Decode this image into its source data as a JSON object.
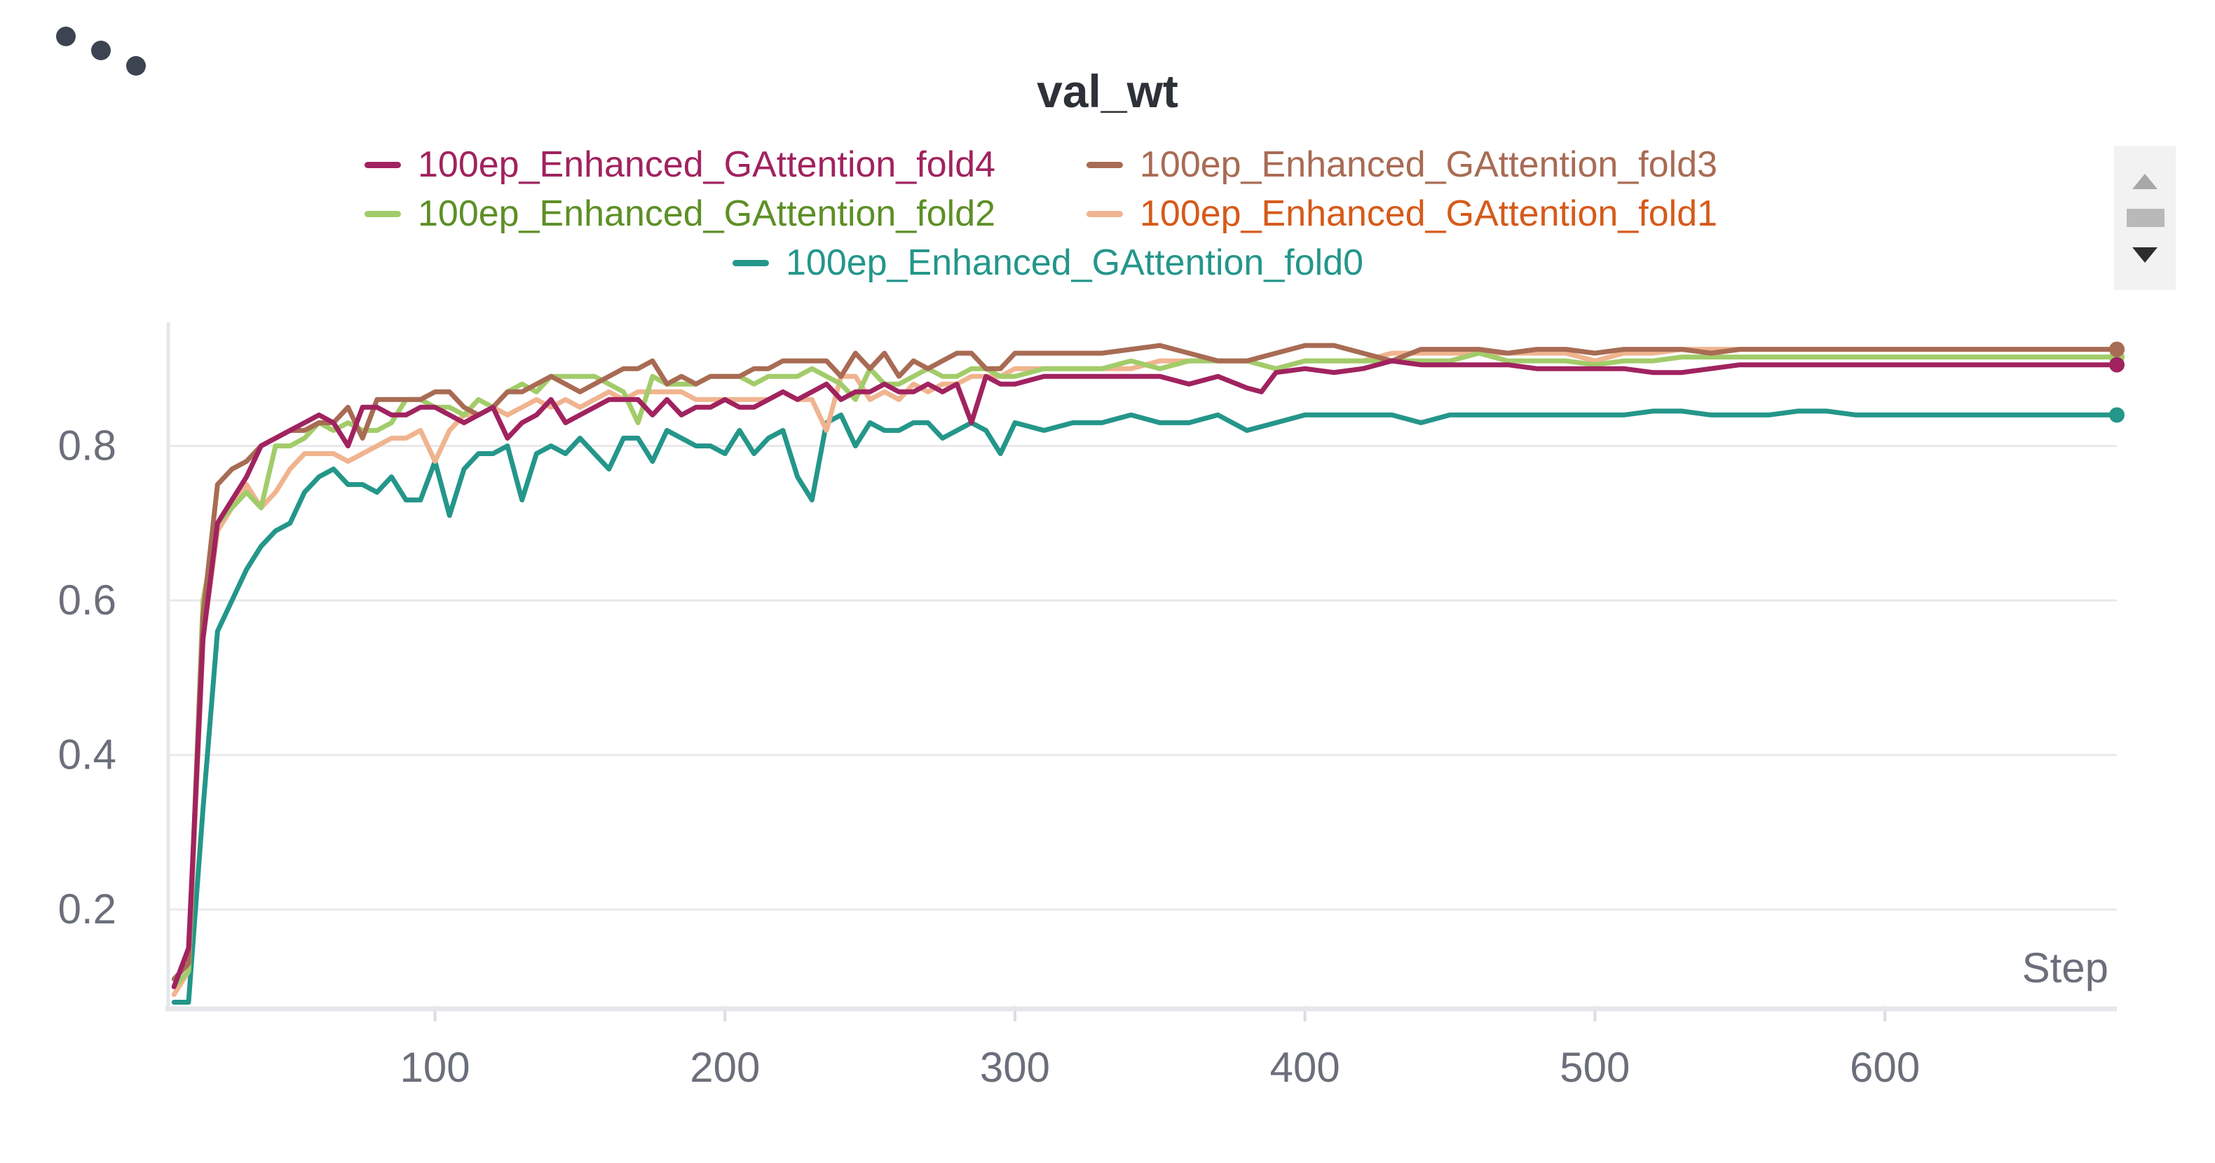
{
  "menu": {
    "icon": "more-dots-icon"
  },
  "chart_data": {
    "type": "line",
    "title": "val_wt",
    "xlabel": "Step",
    "ylabel": "",
    "xlim": [
      8,
      680
    ],
    "ylim": [
      0.075,
      0.96
    ],
    "x_ticks": [
      100,
      200,
      300,
      400,
      500,
      600
    ],
    "y_ticks": [
      0.2,
      0.4,
      0.6,
      0.8
    ],
    "grid": true,
    "legend_position": "top-center",
    "series": [
      {
        "name": "100ep_Enhanced_GAttention_fold4",
        "line_color": "#a0235f",
        "label_color": "#a0235f",
        "x": [
          10,
          15,
          20,
          25,
          30,
          35,
          40,
          45,
          50,
          55,
          60,
          65,
          70,
          75,
          80,
          85,
          90,
          95,
          100,
          105,
          110,
          115,
          120,
          125,
          130,
          135,
          140,
          145,
          150,
          155,
          160,
          165,
          170,
          175,
          180,
          185,
          190,
          195,
          200,
          205,
          210,
          215,
          220,
          225,
          230,
          235,
          240,
          245,
          250,
          255,
          260,
          265,
          270,
          275,
          280,
          285,
          290,
          295,
          300,
          310,
          320,
          330,
          340,
          350,
          360,
          370,
          380,
          385,
          390,
          400,
          410,
          420,
          430,
          440,
          450,
          460,
          470,
          480,
          490,
          500,
          510,
          520,
          530,
          540,
          550,
          560,
          570,
          580,
          590,
          600,
          620,
          640,
          660,
          680
        ],
        "values": [
          0.1,
          0.15,
          0.55,
          0.7,
          0.73,
          0.76,
          0.8,
          0.81,
          0.82,
          0.83,
          0.84,
          0.83,
          0.8,
          0.85,
          0.85,
          0.84,
          0.84,
          0.85,
          0.85,
          0.84,
          0.83,
          0.84,
          0.85,
          0.81,
          0.83,
          0.84,
          0.86,
          0.83,
          0.84,
          0.85,
          0.86,
          0.86,
          0.86,
          0.84,
          0.86,
          0.84,
          0.85,
          0.85,
          0.86,
          0.85,
          0.85,
          0.86,
          0.87,
          0.86,
          0.87,
          0.88,
          0.86,
          0.87,
          0.87,
          0.88,
          0.87,
          0.87,
          0.88,
          0.87,
          0.88,
          0.83,
          0.89,
          0.88,
          0.88,
          0.89,
          0.89,
          0.89,
          0.89,
          0.89,
          0.88,
          0.89,
          0.875,
          0.87,
          0.895,
          0.9,
          0.895,
          0.9,
          0.91,
          0.905,
          0.905,
          0.905,
          0.905,
          0.9,
          0.9,
          0.9,
          0.9,
          0.895,
          0.895,
          0.9,
          0.905,
          0.905,
          0.905,
          0.905,
          0.905,
          0.905,
          0.905,
          0.905,
          0.905,
          0.905
        ]
      },
      {
        "name": "100ep_Enhanced_GAttention_fold3",
        "line_color": "#a86b54",
        "label_color": "#a86b54",
        "x": [
          10,
          15,
          20,
          25,
          30,
          35,
          40,
          45,
          50,
          55,
          60,
          65,
          70,
          75,
          80,
          85,
          90,
          95,
          100,
          105,
          110,
          115,
          120,
          125,
          130,
          135,
          140,
          145,
          150,
          155,
          160,
          165,
          170,
          175,
          180,
          185,
          190,
          195,
          200,
          205,
          210,
          215,
          220,
          225,
          230,
          235,
          240,
          245,
          250,
          255,
          260,
          265,
          270,
          275,
          280,
          285,
          290,
          295,
          300,
          310,
          320,
          330,
          340,
          350,
          360,
          370,
          380,
          390,
          400,
          410,
          420,
          430,
          440,
          450,
          460,
          470,
          480,
          490,
          500,
          510,
          520,
          530,
          540,
          550,
          560,
          570,
          580,
          590,
          600,
          620,
          640,
          660,
          680
        ],
        "values": [
          0.11,
          0.13,
          0.58,
          0.75,
          0.77,
          0.78,
          0.8,
          0.81,
          0.82,
          0.82,
          0.83,
          0.83,
          0.85,
          0.81,
          0.86,
          0.86,
          0.86,
          0.86,
          0.87,
          0.87,
          0.85,
          0.84,
          0.85,
          0.87,
          0.87,
          0.88,
          0.89,
          0.88,
          0.87,
          0.88,
          0.89,
          0.9,
          0.9,
          0.91,
          0.88,
          0.89,
          0.88,
          0.89,
          0.89,
          0.89,
          0.9,
          0.9,
          0.91,
          0.91,
          0.91,
          0.91,
          0.89,
          0.92,
          0.9,
          0.92,
          0.89,
          0.91,
          0.9,
          0.91,
          0.92,
          0.92,
          0.9,
          0.9,
          0.92,
          0.92,
          0.92,
          0.92,
          0.925,
          0.93,
          0.92,
          0.91,
          0.91,
          0.92,
          0.93,
          0.93,
          0.92,
          0.91,
          0.925,
          0.925,
          0.925,
          0.92,
          0.925,
          0.925,
          0.92,
          0.925,
          0.925,
          0.925,
          0.92,
          0.925,
          0.925,
          0.925,
          0.925,
          0.925,
          0.925,
          0.925,
          0.925,
          0.925,
          0.925
        ]
      },
      {
        "name": "100ep_Enhanced_GAttention_fold2",
        "line_color": "#a2cc6a",
        "label_color": "#5d8f26",
        "x": [
          10,
          15,
          20,
          25,
          30,
          35,
          40,
          45,
          50,
          55,
          60,
          65,
          70,
          75,
          80,
          85,
          90,
          95,
          100,
          105,
          110,
          115,
          120,
          125,
          130,
          135,
          140,
          145,
          150,
          155,
          160,
          165,
          170,
          175,
          180,
          185,
          190,
          195,
          200,
          205,
          210,
          215,
          220,
          225,
          230,
          235,
          240,
          245,
          250,
          255,
          260,
          265,
          270,
          275,
          280,
          285,
          290,
          295,
          300,
          310,
          320,
          330,
          340,
          350,
          360,
          370,
          380,
          390,
          400,
          410,
          420,
          430,
          440,
          450,
          460,
          470,
          480,
          490,
          500,
          510,
          520,
          530,
          540,
          550,
          560,
          570,
          580,
          590,
          600,
          620,
          640,
          660,
          680
        ],
        "values": [
          0.1,
          0.12,
          0.6,
          0.7,
          0.72,
          0.74,
          0.72,
          0.8,
          0.8,
          0.81,
          0.83,
          0.82,
          0.83,
          0.82,
          0.82,
          0.83,
          0.86,
          0.86,
          0.85,
          0.85,
          0.84,
          0.86,
          0.85,
          0.87,
          0.88,
          0.87,
          0.89,
          0.89,
          0.89,
          0.89,
          0.88,
          0.87,
          0.83,
          0.89,
          0.88,
          0.88,
          0.88,
          0.89,
          0.89,
          0.89,
          0.88,
          0.89,
          0.89,
          0.89,
          0.9,
          0.89,
          0.88,
          0.86,
          0.9,
          0.88,
          0.88,
          0.89,
          0.9,
          0.89,
          0.89,
          0.9,
          0.9,
          0.89,
          0.89,
          0.9,
          0.9,
          0.9,
          0.91,
          0.9,
          0.91,
          0.91,
          0.91,
          0.9,
          0.91,
          0.91,
          0.91,
          0.91,
          0.91,
          0.91,
          0.92,
          0.91,
          0.91,
          0.91,
          0.905,
          0.91,
          0.91,
          0.915,
          0.915,
          0.915,
          0.915,
          0.915,
          0.915,
          0.915,
          0.915,
          0.915,
          0.915,
          0.915,
          0.915
        ]
      },
      {
        "name": "100ep_Enhanced_GAttention_fold1",
        "line_color": "#f0b48f",
        "label_color": "#d65a1a",
        "x": [
          10,
          15,
          20,
          25,
          30,
          35,
          40,
          45,
          50,
          55,
          60,
          65,
          70,
          75,
          80,
          85,
          90,
          95,
          100,
          105,
          110,
          115,
          120,
          125,
          130,
          135,
          140,
          145,
          150,
          155,
          160,
          165,
          170,
          175,
          180,
          185,
          190,
          195,
          200,
          205,
          210,
          215,
          220,
          225,
          230,
          235,
          240,
          245,
          250,
          255,
          260,
          265,
          270,
          275,
          280,
          285,
          290,
          295,
          300,
          310,
          320,
          330,
          340,
          350,
          360,
          370,
          380,
          390,
          400,
          410,
          420,
          430,
          440,
          450,
          460,
          470,
          480,
          490,
          500,
          510,
          520,
          530,
          540,
          550,
          560,
          570,
          580,
          590,
          600,
          620,
          640,
          660,
          680
        ],
        "values": [
          0.09,
          0.12,
          0.55,
          0.69,
          0.72,
          0.75,
          0.72,
          0.74,
          0.77,
          0.79,
          0.79,
          0.79,
          0.78,
          0.79,
          0.8,
          0.81,
          0.81,
          0.82,
          0.78,
          0.82,
          0.84,
          0.84,
          0.85,
          0.84,
          0.85,
          0.86,
          0.85,
          0.86,
          0.85,
          0.86,
          0.87,
          0.86,
          0.87,
          0.87,
          0.87,
          0.87,
          0.86,
          0.86,
          0.86,
          0.86,
          0.86,
          0.86,
          0.87,
          0.86,
          0.86,
          0.82,
          0.89,
          0.89,
          0.86,
          0.87,
          0.86,
          0.88,
          0.87,
          0.88,
          0.88,
          0.89,
          0.89,
          0.89,
          0.9,
          0.9,
          0.9,
          0.9,
          0.9,
          0.91,
          0.91,
          0.91,
          0.91,
          0.9,
          0.91,
          0.91,
          0.91,
          0.92,
          0.92,
          0.92,
          0.92,
          0.92,
          0.92,
          0.92,
          0.91,
          0.92,
          0.92,
          0.925,
          0.925,
          0.925,
          0.925,
          0.925,
          0.925,
          0.925,
          0.925,
          0.925,
          0.925,
          0.925,
          0.925
        ]
      },
      {
        "name": "100ep_Enhanced_GAttention_fold0",
        "line_color": "#24968a",
        "label_color": "#24968a",
        "x": [
          10,
          15,
          20,
          25,
          30,
          35,
          40,
          45,
          50,
          55,
          60,
          65,
          70,
          75,
          80,
          85,
          90,
          95,
          100,
          105,
          110,
          115,
          120,
          125,
          130,
          135,
          140,
          145,
          150,
          155,
          160,
          165,
          170,
          175,
          180,
          185,
          190,
          195,
          200,
          205,
          210,
          215,
          220,
          225,
          230,
          235,
          240,
          245,
          250,
          255,
          260,
          265,
          270,
          275,
          280,
          285,
          290,
          295,
          300,
          310,
          320,
          330,
          340,
          350,
          360,
          370,
          380,
          390,
          400,
          410,
          420,
          430,
          440,
          450,
          460,
          470,
          480,
          490,
          500,
          510,
          520,
          530,
          540,
          550,
          560,
          570,
          580,
          590,
          600,
          620,
          640,
          660,
          680
        ],
        "values": [
          0.08,
          0.08,
          0.33,
          0.56,
          0.6,
          0.64,
          0.67,
          0.69,
          0.7,
          0.74,
          0.76,
          0.77,
          0.75,
          0.75,
          0.74,
          0.76,
          0.73,
          0.73,
          0.78,
          0.71,
          0.77,
          0.79,
          0.79,
          0.8,
          0.73,
          0.79,
          0.8,
          0.79,
          0.81,
          0.79,
          0.77,
          0.81,
          0.81,
          0.78,
          0.82,
          0.81,
          0.8,
          0.8,
          0.79,
          0.82,
          0.79,
          0.81,
          0.82,
          0.76,
          0.73,
          0.83,
          0.84,
          0.8,
          0.83,
          0.82,
          0.82,
          0.83,
          0.83,
          0.81,
          0.82,
          0.83,
          0.82,
          0.79,
          0.83,
          0.82,
          0.83,
          0.83,
          0.84,
          0.83,
          0.83,
          0.84,
          0.82,
          0.83,
          0.84,
          0.84,
          0.84,
          0.84,
          0.83,
          0.84,
          0.84,
          0.84,
          0.84,
          0.84,
          0.84,
          0.84,
          0.845,
          0.845,
          0.84,
          0.84,
          0.84,
          0.845,
          0.845,
          0.84,
          0.84,
          0.84,
          0.84,
          0.84,
          0.84
        ]
      }
    ]
  }
}
